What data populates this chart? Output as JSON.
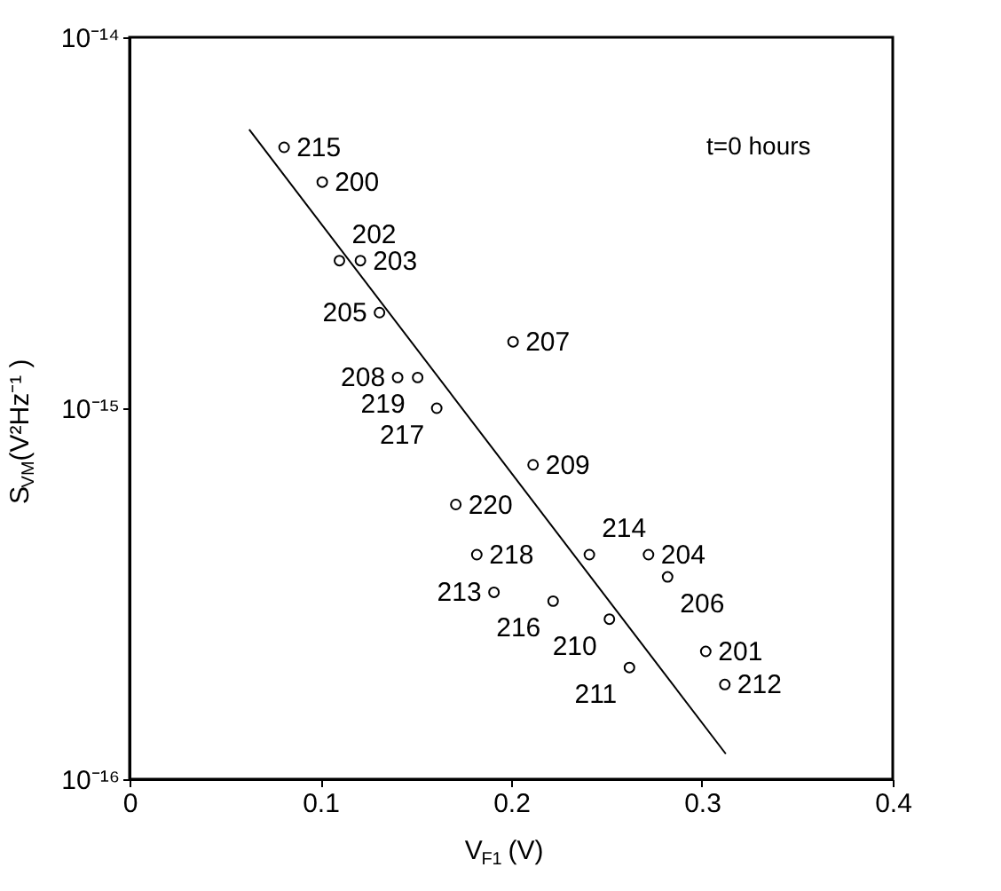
{
  "chart_data": {
    "type": "scatter",
    "xlabel": "V$_{F1}$(V)",
    "ylabel": "S$_{VM}$(V²Hz⁻¹ )",
    "log": "y",
    "grid": false,
    "marker": "circle",
    "xlim": [
      0,
      0.4
    ],
    "xticks": [
      0,
      0.1,
      0.2,
      0.3,
      0.4
    ],
    "ylim": [
      1e-16,
      1e-14
    ],
    "yticks": [
      {
        "value": 1e-16,
        "label": "10⁻¹⁶"
      },
      {
        "value": 1e-15,
        "label": "10⁻¹⁵"
      },
      {
        "value": 1e-14,
        "label": "10⁻¹⁴"
      }
    ],
    "series": [
      {
        "color": "#000000",
        "x": [
          0.081,
          0.101,
          0.11,
          0.121,
          0.131,
          0.1405,
          0.151,
          0.161,
          0.201,
          0.2115,
          0.171,
          0.241,
          0.272,
          0.282,
          0.182,
          0.191,
          0.222,
          0.2515,
          0.262,
          0.302,
          0.312
        ],
        "values": [
          5.05e-15,
          4.07e-15,
          2.5e-15,
          2.5e-15,
          1.81e-15,
          1.21e-15,
          1.21e-15,
          1e-15,
          1.51e-15,
          7.04e-16,
          5.5e-16,
          4.03e-16,
          4.03e-16,
          3.51e-16,
          4.03e-16,
          3.19e-16,
          3.02e-16,
          2.7e-16,
          2e-16,
          2.21e-16,
          1.8e-16
        ]
      },
      {
        "type": "line",
        "color": "#000000",
        "marker": "none",
        "line_style": "solid",
        "x": [
          0.0627,
          0.3125
        ],
        "values": [
          5.64e-15,
          1.17e-16
        ]
      }
    ],
    "annotations": [
      "t=0 hours",
      {
        "text": "215",
        "x": 0.081,
        "y": 5.05e-15
      },
      {
        "text": "200",
        "x": 0.101,
        "y": 4.07e-15
      },
      {
        "text": "202",
        "x": 0.11,
        "y": 2.5e-15
      },
      {
        "text": "203",
        "x": 0.121,
        "y": 2.5e-15
      },
      {
        "text": "205",
        "x": 0.131,
        "y": 1.81e-15
      },
      {
        "text": "208",
        "x": 0.1405,
        "y": 1.21e-15
      },
      {
        "text": "219",
        "x": 0.151,
        "y": 1.21e-15
      },
      {
        "text": "217",
        "x": 0.161,
        "y": 1e-15
      },
      {
        "text": "207",
        "x": 0.201,
        "y": 1.51e-15
      },
      {
        "text": "209",
        "x": 0.2115,
        "y": 7.04e-16
      },
      {
        "text": "220",
        "x": 0.171,
        "y": 5.5e-16
      },
      {
        "text": "214",
        "x": 0.241,
        "y": 4.03e-16
      },
      {
        "text": "204",
        "x": 0.272,
        "y": 4.03e-16
      },
      {
        "text": "206",
        "x": 0.282,
        "y": 3.51e-16
      },
      {
        "text": "218",
        "x": 0.182,
        "y": 4.03e-16
      },
      {
        "text": "213",
        "x": 0.191,
        "y": 3.19e-16
      },
      {
        "text": "216",
        "x": 0.222,
        "y": 3.02e-16
      },
      {
        "text": "210",
        "x": 0.2515,
        "y": 2.7e-16
      },
      {
        "text": "211",
        "x": 0.262,
        "y": 2e-16
      },
      {
        "text": "201",
        "x": 0.302,
        "y": 2.21e-16
      },
      {
        "text": "212",
        "x": 0.312,
        "y": 1.8e-16
      }
    ]
  }
}
